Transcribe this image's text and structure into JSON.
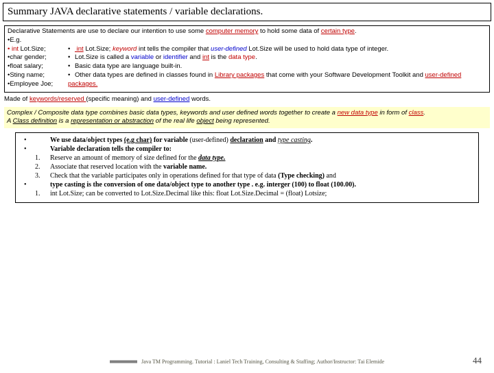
{
  "title": "Summary JAVA declarative statements / variable declarations.",
  "intro_pre": "Declarative Statements are use to declare our intention to use some ",
  "intro_mem": "computer memory",
  "intro_mid": " to hold some data of ",
  "intro_type": "certain type",
  "eg": "•E.g. ",
  "left": {
    "l1a": "• int",
    "l1b": "  Lot.Size;",
    "l2": "•char gender;",
    "l3": "•float salary;",
    "l4": "•Sting name;",
    "l5": "•Employee Joe;"
  },
  "right": {
    "r1_int": " int",
    "r1_ls": "  Lot.Size;  ",
    "r1_kw": "keyword",
    "r1_mid1": " int tells the compiler that ",
    "r1_ud": "user-defined",
    "r1_mid2": " Lot.Size will be used to hold data type of integer.",
    "r2a": "Lot.Size is called a ",
    "r2_var": "variable",
    "r2b": " or ",
    "r2_id": "identifier",
    "r2c": " and ",
    "r2_int": "int",
    "r2d": " is the ",
    "r2_dt": "data type",
    "r3": "Basic data type are language built-in.",
    "r4a": "Other data types are defined in classes found in ",
    "r4_lib": " Library packages",
    "r4b": " that come with your Software Development Toolkit and ",
    "r4_udp": " user-defined packages."
  },
  "made_pre": "Made of  ",
  "made_kw": "keywords/reserved ",
  "made_mid": " (specific meaning)  and ",
  "made_ud": "user-defined",
  "made_end": " words.",
  "yellow": {
    "y1a": "Complex / Composite data type combines basic data types, keywords and user defined words together to create a ",
    "y1_ndt": "new data type",
    "y1b": " in form of ",
    "y1_class": "class",
    "y2a": "A ",
    "y2_cd": "Class definition",
    "y2b": " is a ",
    "y2_rep": "representation or abstraction",
    "y2c": " of the real life ",
    "y2_obj": "object",
    "y2d": " being represented."
  },
  "box2": {
    "b1a": "We use data/object  types ",
    "b1_eg": "(e.g char)",
    "b1b": " for variable ",
    "b1_ud": "(user-defined)",
    "b1c": " ",
    "b1_decl": "declaration",
    "b1d": " and ",
    "b1_tc": "type casting",
    "b2": "Variable declaration tells the compiler to:",
    "n1a": "Reserve an amount of memory of size defined for the ",
    "n1_dt": "data type.",
    "n2a": "Associate that reserved location with the ",
    "n2_vn": "variable name.",
    "n3a": "Check that the variable participates only in operations defined for that type of data  ",
    "n3_tc": "(Type checking)",
    "n3b": " and",
    "b3a": "type casting  is the conversion of one data/object type to another type . e.g. interger (100) to float (100.00).",
    "b3n1": "int Lot.Size; can be converted to Lot.Size.Decimal like this:  float Lot.Size.Decimal = (float) Lotsize;"
  },
  "footer": "Java TM Programming. Tutorial  :  Laniel Tech Training, Consulting & Staffing; Author/Instructor: Tai Elemide",
  "page": "44"
}
